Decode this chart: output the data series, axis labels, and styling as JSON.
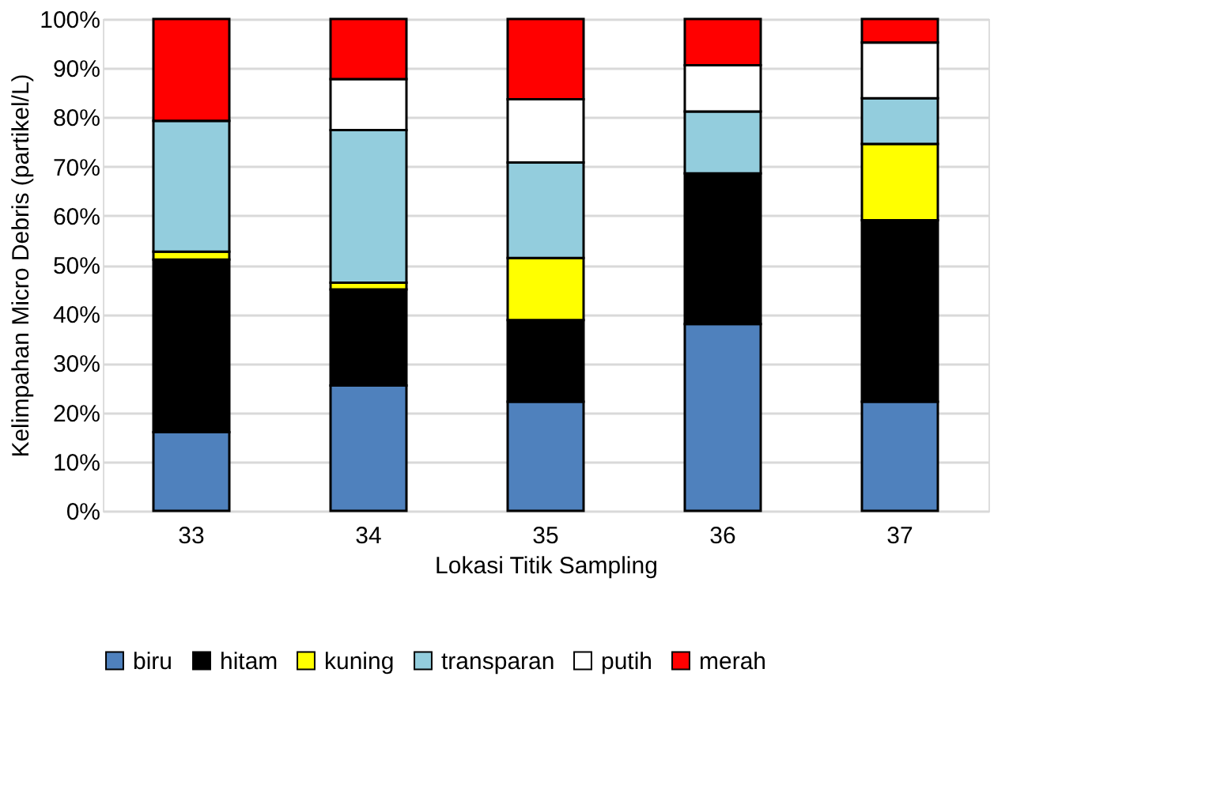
{
  "chart_data": {
    "type": "bar",
    "stacked": true,
    "xlabel": "Lokasi Titik Sampling",
    "ylabel": "Kelimpahan Micro Debris (partikel/L)",
    "categories": [
      "33",
      "34",
      "35",
      "36",
      "37"
    ],
    "series": [
      {
        "name": "biru",
        "color": "#4f81bd",
        "values": [
          16.0,
          25.5,
          22.2,
          38.0,
          22.2
        ]
      },
      {
        "name": "hitam",
        "color": "#000000",
        "values": [
          35.1,
          19.5,
          16.6,
          30.6,
          36.9
        ]
      },
      {
        "name": "kuning",
        "color": "#ffff00",
        "values": [
          1.6,
          1.4,
          12.6,
          0,
          15.5
        ]
      },
      {
        "name": "transparan",
        "color": "#93cddd",
        "values": [
          26.6,
          31.0,
          19.4,
          12.6,
          9.3
        ]
      },
      {
        "name": "putih",
        "color": "#ffffff",
        "values": [
          0,
          10.4,
          12.9,
          9.4,
          11.3
        ]
      },
      {
        "name": "merah",
        "color": "#ff0000",
        "values": [
          20.7,
          12.2,
          16.3,
          9.4,
          4.8
        ]
      }
    ],
    "ylim": [
      0,
      100
    ],
    "yticks": [
      {
        "value": 0,
        "label": "0%"
      },
      {
        "value": 10,
        "label": "10%"
      },
      {
        "value": 20,
        "label": "20%"
      },
      {
        "value": 30,
        "label": "30%"
      },
      {
        "value": 40,
        "label": "40%"
      },
      {
        "value": 50,
        "label": "50%"
      },
      {
        "value": 60,
        "label": "60%"
      },
      {
        "value": 70,
        "label": "70%"
      },
      {
        "value": 80,
        "label": "80%"
      },
      {
        "value": 90,
        "label": "90%"
      },
      {
        "value": 100,
        "label": "100%"
      }
    ],
    "grid": "y",
    "legend": "bottom"
  }
}
